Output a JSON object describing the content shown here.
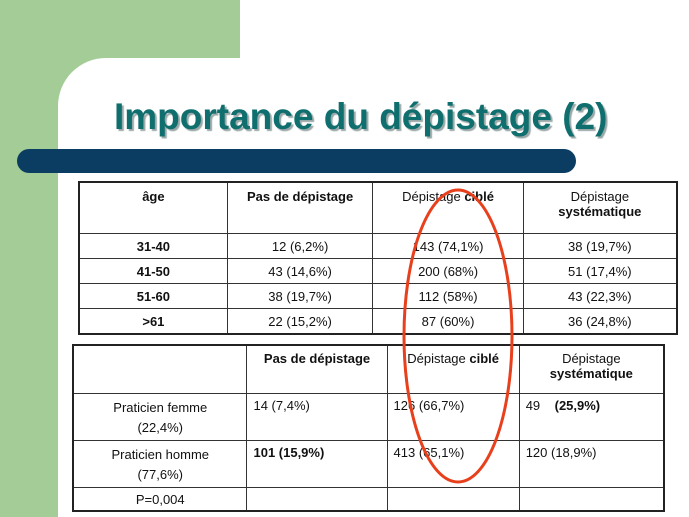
{
  "title": "Importance du dépistage (2)",
  "colors": {
    "title": "#0f6e6e",
    "title_bar": "#0b3d63",
    "side_panel": "#a3cc96",
    "highlight": "#e8401c"
  },
  "table1": {
    "headers": {
      "age": "âge",
      "pas": "Pas de dépistage",
      "cible_a": "Dépistage ",
      "cible_b": "ciblé",
      "syst_a": "Dépistage",
      "syst_b": "systématique"
    },
    "rows": [
      {
        "age": "31-40",
        "pas": "12   (6,2%)",
        "cible": "143  (74,1%)",
        "syst": "38 (19,7%)"
      },
      {
        "age": "41-50",
        "pas": "43 (14,6%)",
        "cible": "200  (68%)",
        "syst": "51 (17,4%)"
      },
      {
        "age": "51-60",
        "pas": "38 (19,7%)",
        "cible": "112  (58%)",
        "syst": "43 (22,3%)"
      },
      {
        "age": ">61",
        "pas": "22 (15,2%)",
        "cible": "87   (60%)",
        "syst": "36 (24,8%)"
      }
    ]
  },
  "table2": {
    "headers": {
      "pas": "Pas de dépistage",
      "cible_a": "Dépistage ",
      "cible_b": "ciblé",
      "syst_a": "Dépistage",
      "syst_b": "systématique"
    },
    "rows": [
      {
        "label_a": "Praticien femme",
        "label_b": "(22,4%)",
        "pas": "14   (7,4%)",
        "cible": "126  (66,7%)",
        "syst_num": "49",
        "syst_pct": "(25,9%)"
      },
      {
        "label_a": "Praticien homme",
        "label_b": "(77,6%)",
        "pas": "101 (15,9%)",
        "cible": "413 (65,1%)",
        "syst": "120  (18,9%)"
      }
    ],
    "p_value": "P=0,004"
  }
}
